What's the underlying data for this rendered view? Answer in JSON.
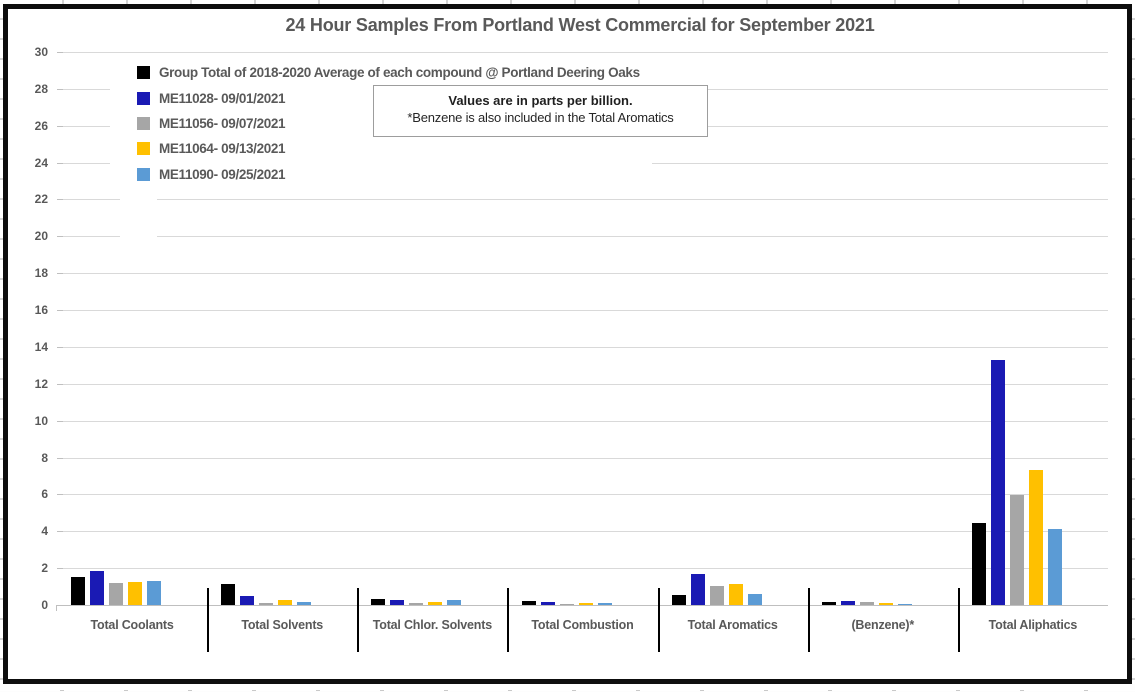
{
  "chart_data": {
    "type": "bar",
    "title": "24 Hour Samples From Portland West Commercial for September 2021",
    "note": {
      "line1": "Values are in parts per billion.",
      "line2": "*Benzene is also included in the Total Aromatics"
    },
    "categories": [
      "Total Coolants",
      "Total Solvents",
      "Total Chlor. Solvents",
      "Total Combustion",
      "Total Aromatics",
      "(Benzene)*",
      "Total Aliphatics"
    ],
    "series": [
      {
        "name": "Group Total of 2018-2020 Average of each compound @ Portland Deering Oaks",
        "color": "#000000",
        "values": [
          1.5,
          1.15,
          0.3,
          0.22,
          0.55,
          0.17,
          4.45
        ]
      },
      {
        "name": "ME11028- 09/01/2021",
        "color": "#1a1ab4",
        "values": [
          1.85,
          0.5,
          0.27,
          0.18,
          1.7,
          0.22,
          13.3
        ]
      },
      {
        "name": "ME11056- 09/07/2021",
        "color": "#a6a6a6",
        "values": [
          1.2,
          0.1,
          0.1,
          0.07,
          1.05,
          0.17,
          5.95
        ]
      },
      {
        "name": "ME11064- 09/13/2021",
        "color": "#ffc000",
        "values": [
          1.25,
          0.27,
          0.16,
          0.12,
          1.15,
          0.12,
          7.35
        ]
      },
      {
        "name": "ME11090- 09/25/2021",
        "color": "#5b9bd5",
        "values": [
          1.3,
          0.17,
          0.26,
          0.13,
          0.6,
          0.05,
          4.1
        ]
      }
    ],
    "ylim": [
      0,
      30
    ],
    "ytick_step": 2,
    "xlabel": "",
    "ylabel": "",
    "grid": true,
    "legend_position": "top-left",
    "units": "parts per billion"
  },
  "colors": {
    "title_text": "#595959",
    "axis_text": "#595959",
    "gridline": "#d9d9d9",
    "axis_line": "#bfbfbf",
    "chart_border": "#0d0d0d",
    "note_border": "#9d9d9d"
  }
}
